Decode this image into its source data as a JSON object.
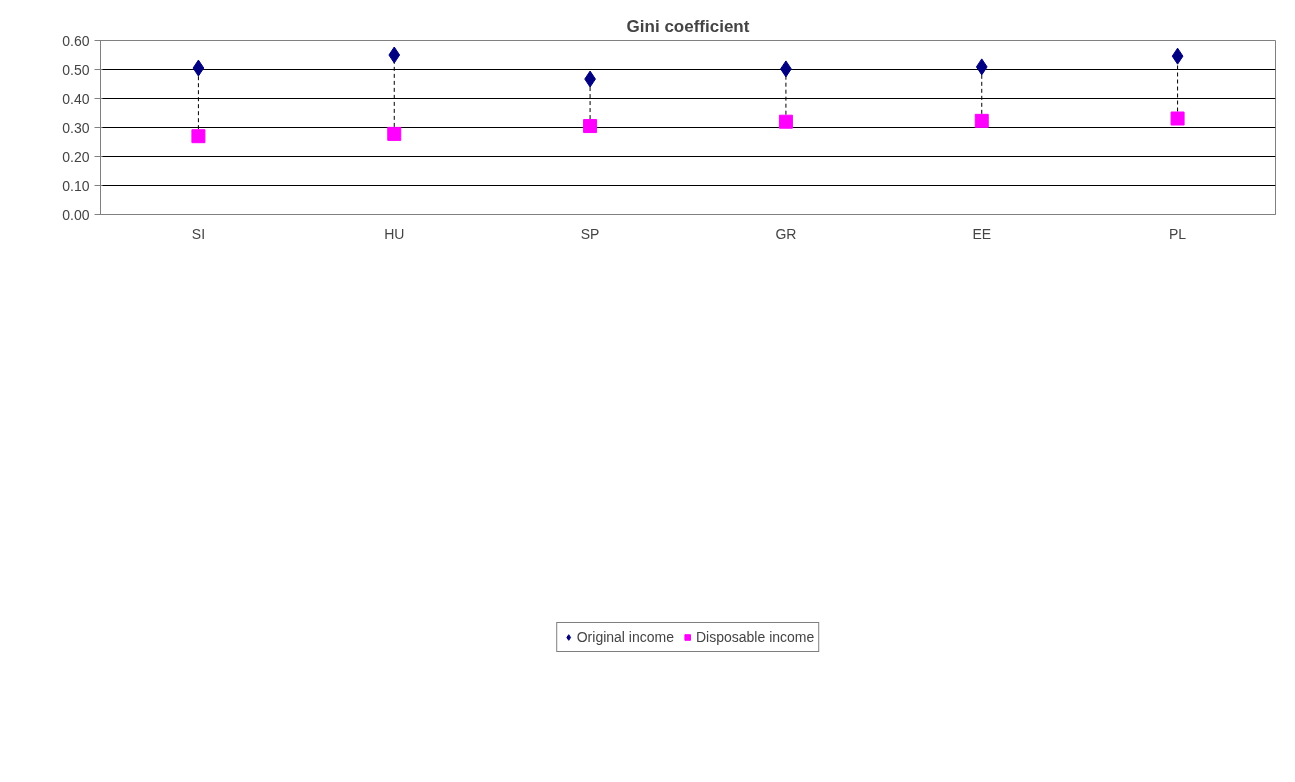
{
  "chart_data": {
    "type": "scatter",
    "title": "Gini coefficient",
    "categories": [
      "SI",
      "HU",
      "SP",
      "GR",
      "EE",
      "PL"
    ],
    "series": [
      {
        "name": "Original income",
        "color": "#000080",
        "marker": "diamond",
        "values": [
          0.505,
          0.55,
          0.467,
          0.502,
          0.509,
          0.546
        ]
      },
      {
        "name": "Disposable income",
        "color": "#ff00ff",
        "marker": "square",
        "values": [
          0.27,
          0.278,
          0.305,
          0.32,
          0.323,
          0.331
        ]
      }
    ],
    "ylim": [
      0,
      0.6
    ],
    "yticks": [
      {
        "value": 0,
        "label": "0.00"
      },
      {
        "value": 0.1,
        "label": "0.10"
      },
      {
        "value": 0.2,
        "label": "0.20"
      },
      {
        "value": 0.3,
        "label": "0.30"
      },
      {
        "value": 0.4,
        "label": "0.40"
      },
      {
        "value": 0.5,
        "label": "0.50"
      },
      {
        "value": 0.6,
        "label": "0.60"
      }
    ],
    "grid": "y",
    "legend": "bottom"
  }
}
